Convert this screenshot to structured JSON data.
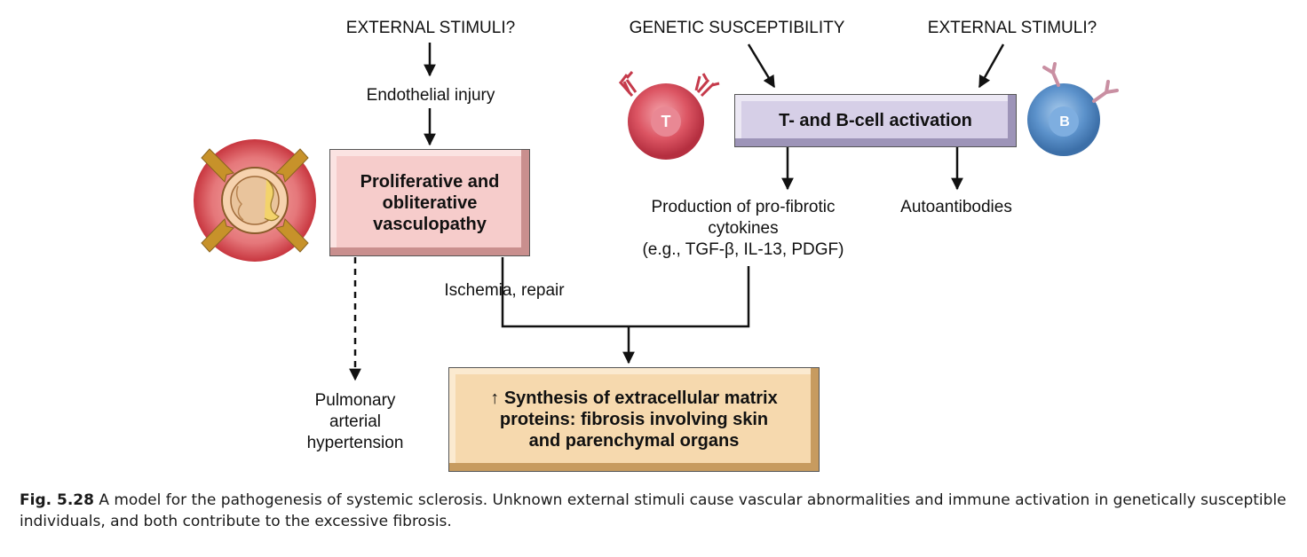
{
  "stimuli_left": "EXTERNAL STIMULI?",
  "genetic": "GENETIC SUSCEPTIBILITY",
  "stimuli_right": "EXTERNAL STIMULI?",
  "endothelial_injury": "Endothelial injury",
  "vasculopathy_box": [
    "Proliferative and",
    "obliterative",
    "vasculopathy"
  ],
  "activation_box": "T- and B-cell activation",
  "cytokines": [
    "Production of pro-fibrotic",
    "cytokines",
    "(e.g., TGF-β, IL-13, PDGF)"
  ],
  "autoantibodies": "Autoantibodies",
  "ischemia": "Ischemia, repair",
  "pulmonary": [
    "Pulmonary",
    "arterial",
    "hypertension"
  ],
  "synthesis_box": [
    "↑ Synthesis of extracellular matrix",
    "proteins: fibrosis involving skin",
    "and parenchymal organs"
  ],
  "t_cell_label": "T",
  "b_cell_label": "B",
  "caption": {
    "label": "Fig. 5.28",
    "text": "A model for the pathogenesis of systemic sclerosis. Unknown external stimuli cause vascular abnormalities and immune activation in genetically susceptible individuals, and both contribute to the excessive fibrosis."
  },
  "colors": {
    "vasculopathy_fill": "#f6cccb",
    "activation_fill": "#d6cfe7",
    "synthesis_fill": "#f6d9ae",
    "t_cell": "#d94a5a",
    "b_cell": "#5b8fc8",
    "vessel_arrows": "#c7922a"
  }
}
